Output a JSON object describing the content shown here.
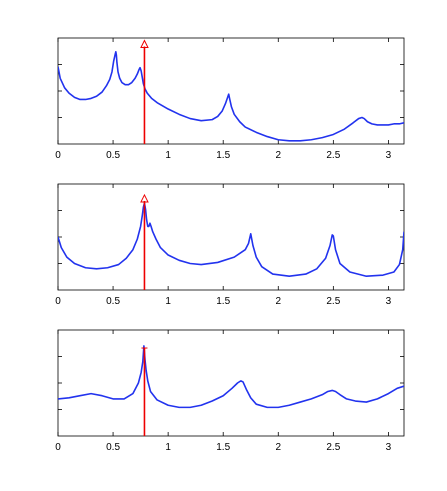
{
  "figure": {
    "background": "#ffffff",
    "axis_color": "#000000",
    "curve_color": "#2233ee",
    "marker_color": "#ee0000"
  },
  "chart_data": [
    {
      "type": "line",
      "xlim": [
        0,
        3.14159
      ],
      "ylim": [
        0,
        1
      ],
      "x_ticks": [
        0,
        0.5,
        1,
        1.5,
        2,
        2.5,
        3
      ],
      "x_tick_labels": [
        "0",
        "0.5",
        "1",
        "1.5",
        "2",
        "2.5",
        "3"
      ],
      "y_ticks": [
        0.25,
        0.5,
        0.75
      ],
      "y_tick_labels": [],
      "grid": false,
      "series": [
        {
          "x": [
            0,
            0.02,
            0.06,
            0.1,
            0.15,
            0.2,
            0.25,
            0.3,
            0.35,
            0.4,
            0.44,
            0.47,
            0.49,
            0.505,
            0.52,
            0.525,
            0.53,
            0.535,
            0.545,
            0.56,
            0.58,
            0.61,
            0.64,
            0.67,
            0.7,
            0.72,
            0.735,
            0.745,
            0.755,
            0.765,
            0.775,
            0.79,
            0.81,
            0.85,
            0.9,
            1.0,
            1.1,
            1.2,
            1.3,
            1.4,
            1.45,
            1.49,
            1.52,
            1.54,
            1.55,
            1.56,
            1.575,
            1.6,
            1.65,
            1.7,
            1.8,
            1.9,
            2.0,
            2.1,
            2.2,
            2.3,
            2.4,
            2.5,
            2.6,
            2.68,
            2.73,
            2.76,
            2.78,
            2.81,
            2.85,
            2.9,
            2.95,
            3.0,
            3.05,
            3.1,
            3.14159
          ],
          "y": [
            0.73,
            0.62,
            0.53,
            0.48,
            0.44,
            0.42,
            0.42,
            0.43,
            0.45,
            0.49,
            0.55,
            0.61,
            0.68,
            0.78,
            0.85,
            0.87,
            0.84,
            0.77,
            0.68,
            0.62,
            0.58,
            0.56,
            0.56,
            0.58,
            0.62,
            0.66,
            0.7,
            0.72,
            0.69,
            0.63,
            0.57,
            0.52,
            0.48,
            0.43,
            0.39,
            0.33,
            0.28,
            0.24,
            0.22,
            0.23,
            0.26,
            0.31,
            0.38,
            0.44,
            0.47,
            0.42,
            0.35,
            0.28,
            0.21,
            0.16,
            0.11,
            0.07,
            0.04,
            0.03,
            0.03,
            0.04,
            0.06,
            0.09,
            0.14,
            0.2,
            0.24,
            0.25,
            0.24,
            0.21,
            0.19,
            0.18,
            0.18,
            0.18,
            0.19,
            0.19,
            0.2
          ]
        }
      ],
      "markers": [
        {
          "x": 0.785,
          "height": 0.92,
          "symbol": "triangle"
        }
      ]
    },
    {
      "type": "line",
      "xlim": [
        0,
        3.14159
      ],
      "ylim": [
        0,
        1
      ],
      "x_ticks": [
        0,
        0.5,
        1,
        1.5,
        2,
        2.5,
        3
      ],
      "x_tick_labels": [
        "0",
        "0.5",
        "1",
        "1.5",
        "2",
        "2.5",
        "3"
      ],
      "y_ticks": [
        0.25,
        0.5,
        0.75
      ],
      "y_tick_labels": [],
      "grid": false,
      "series": [
        {
          "x": [
            0,
            0.03,
            0.08,
            0.15,
            0.25,
            0.35,
            0.45,
            0.55,
            0.62,
            0.68,
            0.72,
            0.75,
            0.765,
            0.775,
            0.785,
            0.795,
            0.805,
            0.815,
            0.825,
            0.835,
            0.845,
            0.86,
            0.89,
            0.93,
            1.0,
            1.1,
            1.2,
            1.3,
            1.45,
            1.6,
            1.7,
            1.73,
            1.75,
            1.77,
            1.8,
            1.85,
            1.95,
            2.1,
            2.25,
            2.35,
            2.43,
            2.47,
            2.49,
            2.5,
            2.52,
            2.56,
            2.65,
            2.8,
            2.95,
            3.05,
            3.1,
            3.13,
            3.14159
          ],
          "y": [
            0.5,
            0.4,
            0.31,
            0.25,
            0.21,
            0.2,
            0.21,
            0.24,
            0.3,
            0.38,
            0.48,
            0.6,
            0.7,
            0.78,
            0.82,
            0.76,
            0.66,
            0.6,
            0.6,
            0.63,
            0.6,
            0.55,
            0.48,
            0.4,
            0.33,
            0.28,
            0.25,
            0.24,
            0.26,
            0.31,
            0.38,
            0.44,
            0.53,
            0.42,
            0.31,
            0.22,
            0.15,
            0.13,
            0.15,
            0.2,
            0.3,
            0.42,
            0.52,
            0.51,
            0.38,
            0.25,
            0.17,
            0.13,
            0.14,
            0.17,
            0.24,
            0.38,
            0.55
          ]
        }
      ],
      "markers": [
        {
          "x": 0.785,
          "height": 0.84,
          "symbol": "triangle"
        }
      ]
    },
    {
      "type": "line",
      "xlim": [
        0,
        3.14159
      ],
      "ylim": [
        0,
        1
      ],
      "x_ticks": [
        0,
        0.5,
        1,
        1.5,
        2,
        2.5,
        3
      ],
      "x_tick_labels": [
        "0",
        "0.5",
        "1",
        "1.5",
        "2",
        "2.5",
        "3"
      ],
      "y_ticks": [
        0.25,
        0.5,
        0.75
      ],
      "y_tick_labels": [],
      "grid": false,
      "series": [
        {
          "x": [
            0,
            0.1,
            0.2,
            0.3,
            0.4,
            0.5,
            0.6,
            0.68,
            0.73,
            0.755,
            0.77,
            0.78,
            0.79,
            0.8,
            0.815,
            0.84,
            0.9,
            1.0,
            1.1,
            1.2,
            1.3,
            1.4,
            1.5,
            1.58,
            1.63,
            1.66,
            1.68,
            1.71,
            1.75,
            1.8,
            1.9,
            2.0,
            2.1,
            2.2,
            2.3,
            2.4,
            2.45,
            2.49,
            2.52,
            2.56,
            2.62,
            2.7,
            2.8,
            2.9,
            3.0,
            3.08,
            3.14159
          ],
          "y": [
            0.35,
            0.36,
            0.38,
            0.4,
            0.38,
            0.35,
            0.35,
            0.4,
            0.5,
            0.6,
            0.7,
            0.85,
            0.72,
            0.62,
            0.52,
            0.42,
            0.34,
            0.29,
            0.27,
            0.27,
            0.29,
            0.33,
            0.38,
            0.45,
            0.5,
            0.52,
            0.51,
            0.44,
            0.36,
            0.3,
            0.27,
            0.27,
            0.29,
            0.32,
            0.35,
            0.39,
            0.42,
            0.43,
            0.42,
            0.39,
            0.35,
            0.33,
            0.32,
            0.35,
            0.4,
            0.45,
            0.47
          ]
        }
      ],
      "markers": [
        {
          "x": 0.785,
          "height": 0.83,
          "symbol": "tick"
        }
      ]
    }
  ]
}
